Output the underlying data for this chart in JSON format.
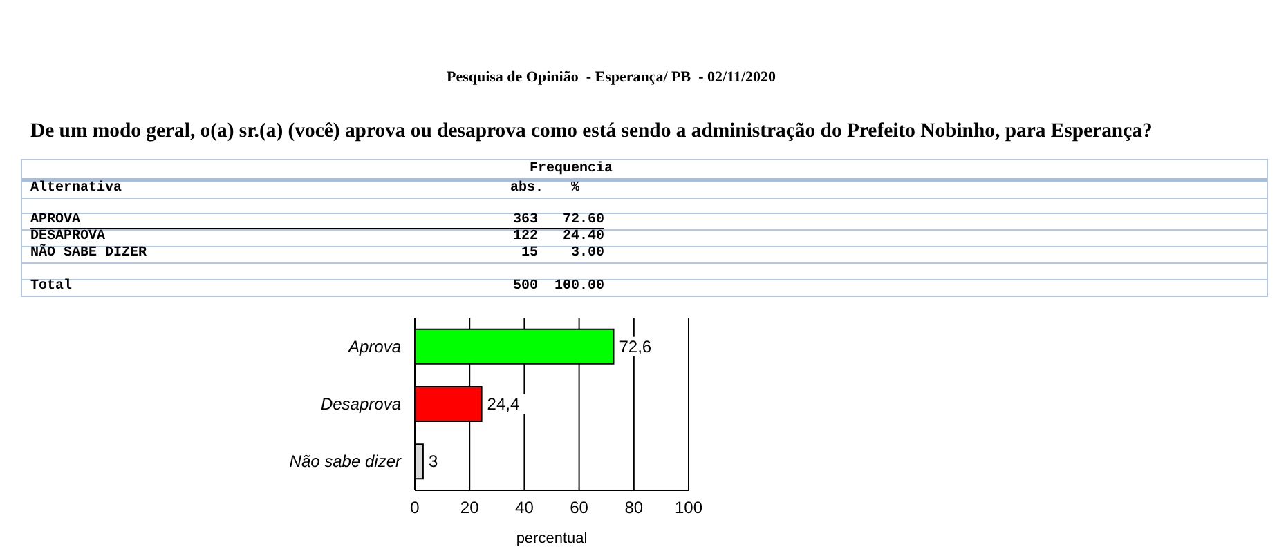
{
  "chart_data": [
    {
      "type": "other",
      "subtitle": "Pesquisa de Opinião  - Esperança/ PB  - 02/11/2020",
      "title": "De um modo geral, o(a) sr.(a) (você) aprova ou desaprova como está sendo a administração do Prefeito Nobinho, para Esperança?",
      "legend_title": "Frequencia",
      "ylabel": "Alternativa",
      "categories": [
        "APROVA",
        "DESAPROVA",
        "NÃO SABE DIZER",
        "Total"
      ],
      "data_labels": true,
      "series": [
        {
          "name": "abs.",
          "values": [
            363,
            122,
            15,
            500
          ]
        },
        {
          "name": "%",
          "values": [
            72.6,
            24.4,
            3,
            100
          ],
          "value_labels": [
            "72.60",
            "24.40",
            "3.00",
            "100.00"
          ]
        }
      ]
    },
    {
      "type": "bar",
      "orientation": "horizontal",
      "categories": [
        "Aprova",
        "Desaprova",
        "Não sabe dizer"
      ],
      "values": [
        72.6,
        24.4,
        3
      ],
      "colors": [
        "#00ff00",
        "#ff0000",
        "#d9d9d9"
      ],
      "value_labels": [
        "72,6",
        "24,4",
        "3"
      ],
      "xlim": [
        0,
        100
      ],
      "xticks": [
        0,
        20,
        40,
        60,
        80,
        100
      ],
      "xlabel": "percentual",
      "grid": "x"
    }
  ]
}
